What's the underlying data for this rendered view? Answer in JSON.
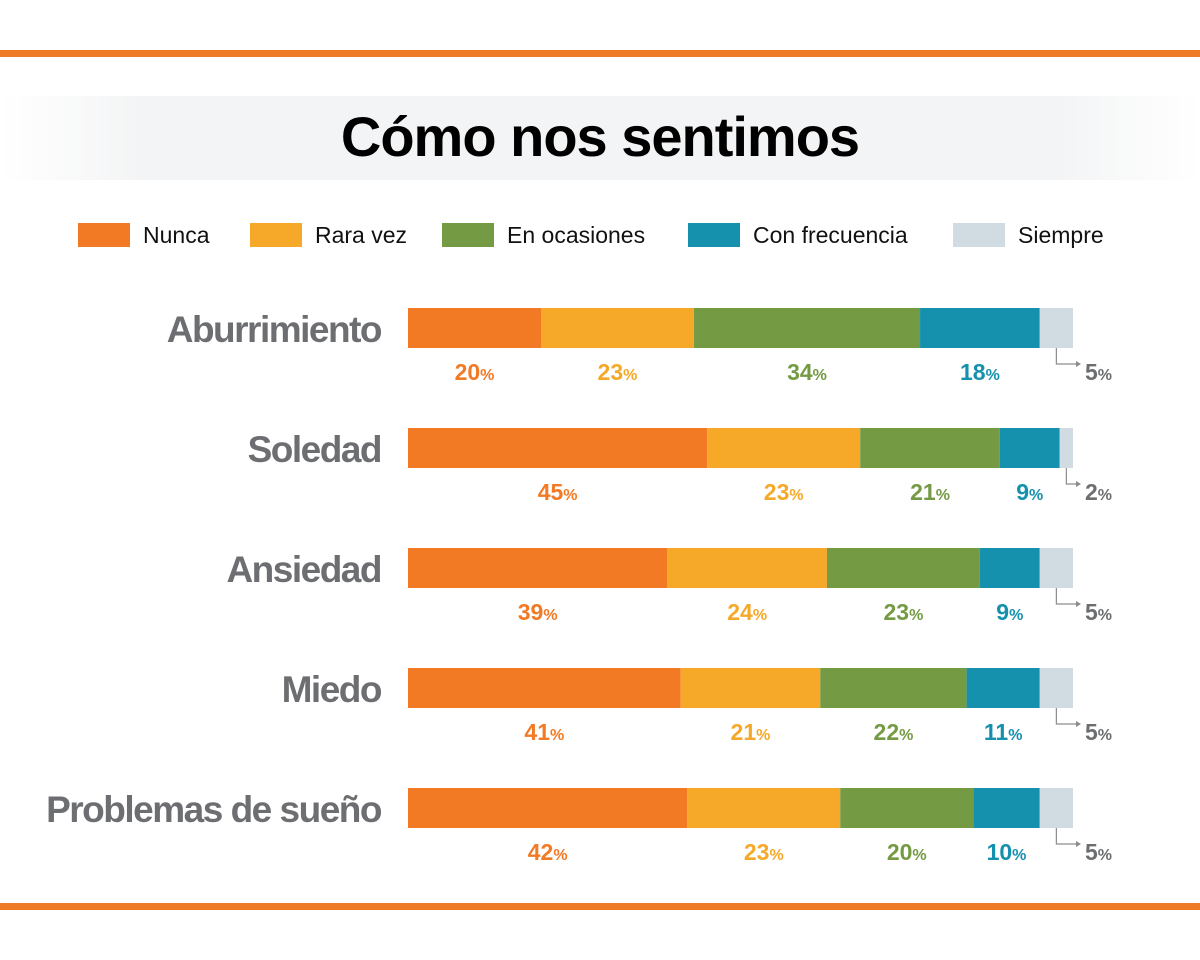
{
  "chart_data": {
    "type": "bar",
    "orientation": "horizontal",
    "stacked": true,
    "title": "Cómo nos sentimos",
    "categories": [
      "Aburrimiento",
      "Soledad",
      "Ansiedad",
      "Miedo",
      "Problemas de sueño"
    ],
    "series": [
      {
        "name": "Nunca",
        "color": "#f37a24",
        "values": [
          20,
          45,
          39,
          41,
          42
        ]
      },
      {
        "name": "Rara vez",
        "color": "#f6a928",
        "values": [
          23,
          23,
          24,
          21,
          23
        ]
      },
      {
        "name": "En ocasiones",
        "color": "#749a43",
        "values": [
          34,
          21,
          23,
          22,
          20
        ]
      },
      {
        "name": "Con frecuencia",
        "color": "#1590ad",
        "values": [
          18,
          9,
          9,
          11,
          10
        ]
      },
      {
        "name": "Siempre",
        "color": "#d1dce2",
        "label_color": "#6d6e71",
        "values": [
          5,
          2,
          5,
          5,
          5
        ]
      }
    ],
    "unit": "%",
    "xlim": [
      0,
      100
    ],
    "legend": "top",
    "grid": false
  }
}
